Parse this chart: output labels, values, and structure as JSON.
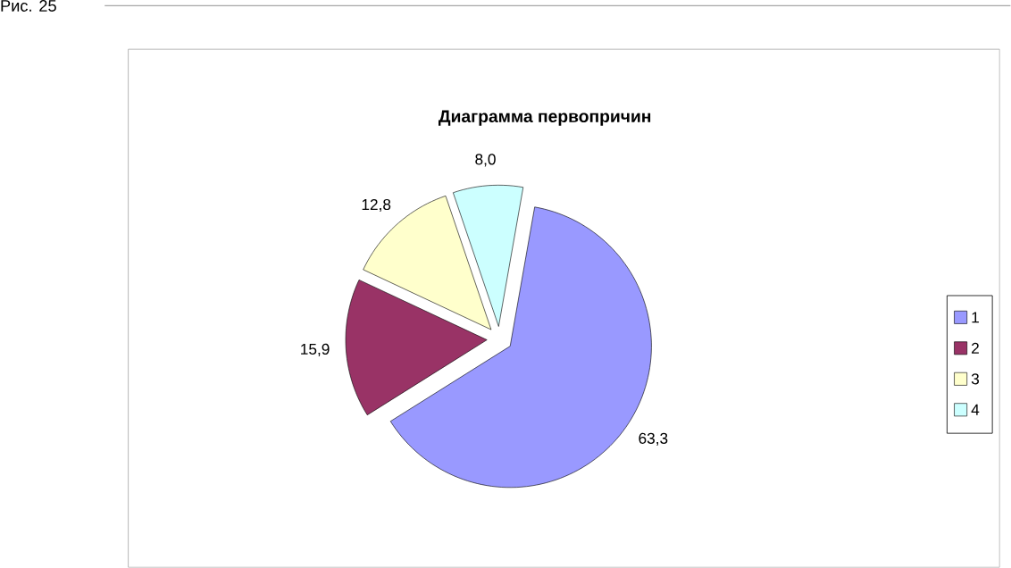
{
  "chart_data": {
    "type": "pie",
    "title": "Диаграмма первопричин",
    "categories": [
      "1",
      "2",
      "3",
      "4"
    ],
    "values": [
      63.3,
      15.9,
      12.8,
      8.0
    ],
    "value_labels": [
      "63,3",
      "15,9",
      "12,8",
      "8,0"
    ],
    "colors": [
      "#9999ff",
      "#993366",
      "#ffffcc",
      "#ccffff"
    ],
    "legend": "right",
    "annotations": [
      "Рис. 25"
    ]
  }
}
